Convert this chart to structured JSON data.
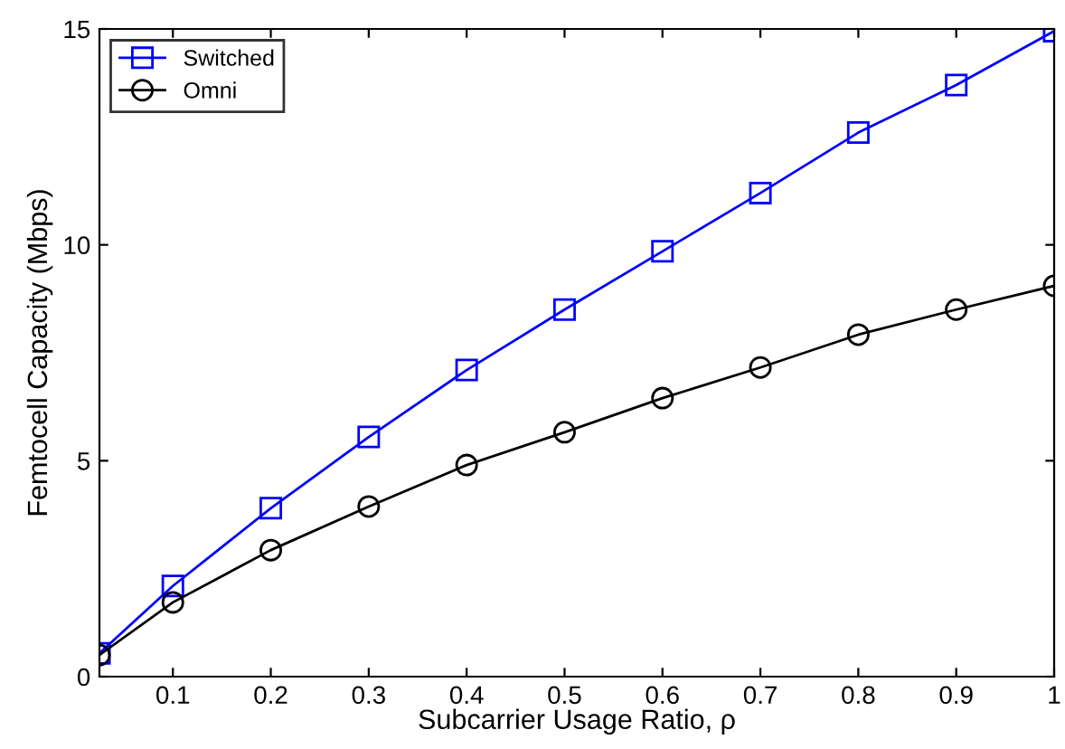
{
  "chart_data": {
    "type": "line",
    "xlabel": "Subcarrier Usage Ratio, ρ",
    "ylabel": "Femtocell Capacity (Mbps)",
    "x": [
      0.025,
      0.1,
      0.2,
      0.3,
      0.4,
      0.5,
      0.6,
      0.7,
      0.8,
      0.9,
      1
    ],
    "series": [
      {
        "name": "Switched",
        "color": "#0000ff",
        "marker": "square",
        "values": [
          0.54,
          2.1,
          3.9,
          5.55,
          7.1,
          8.5,
          9.85,
          11.2,
          12.6,
          13.7,
          14.95
        ]
      },
      {
        "name": "Omni",
        "color": "#000000",
        "marker": "circle",
        "values": [
          0.5,
          1.72,
          2.93,
          3.94,
          4.9,
          5.66,
          6.45,
          7.16,
          7.92,
          8.5,
          9.05
        ]
      }
    ],
    "xlim": [
      0.025,
      1
    ],
    "ylim": [
      0,
      15
    ],
    "xticks": [
      0.1,
      0.2,
      0.3,
      0.4,
      0.5,
      0.6,
      0.7,
      0.8,
      0.9,
      1
    ],
    "yticks": [
      0,
      5,
      10,
      15
    ],
    "grid": false,
    "legend": "top left",
    "line_style": "solid"
  }
}
